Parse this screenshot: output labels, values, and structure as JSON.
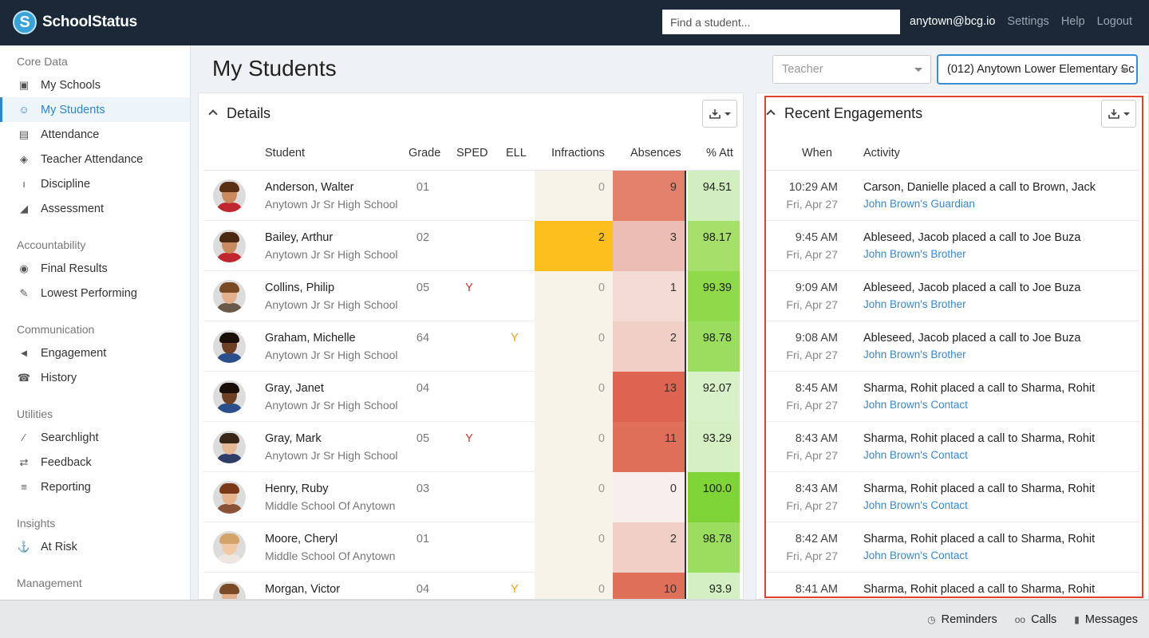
{
  "app": {
    "name": "SchoolStatus",
    "logo_letter": "S"
  },
  "topbar": {
    "search_placeholder": "Find a student...",
    "user": "anytown@bcg.io",
    "settings": "Settings",
    "help": "Help",
    "logout": "Logout"
  },
  "sidebar": {
    "sections": [
      {
        "title": "Core Data",
        "items": [
          {
            "label": "My Schools",
            "icon": "school-icon"
          },
          {
            "label": "My Students",
            "icon": "users-icon",
            "active": true
          },
          {
            "label": "Attendance",
            "icon": "calendar-icon"
          },
          {
            "label": "Teacher Attendance",
            "icon": "ticket-icon"
          },
          {
            "label": "Discipline",
            "icon": "thermometer-icon"
          },
          {
            "label": "Assessment",
            "icon": "area-chart-icon"
          }
        ]
      },
      {
        "title": "Accountability",
        "items": [
          {
            "label": "Final Results",
            "icon": "eye-icon"
          },
          {
            "label": "Lowest Performing",
            "icon": "pencil-icon"
          }
        ]
      },
      {
        "title": "Communication",
        "items": [
          {
            "label": "Engagement",
            "icon": "megaphone-icon"
          },
          {
            "label": "History",
            "icon": "phone-icon"
          }
        ]
      },
      {
        "title": "Utilities",
        "items": [
          {
            "label": "Searchlight",
            "icon": "flashlight-icon"
          },
          {
            "label": "Feedback",
            "icon": "retweet-icon"
          },
          {
            "label": "Reporting",
            "icon": "list-icon"
          }
        ]
      },
      {
        "title": "Insights",
        "items": [
          {
            "label": "At Risk",
            "icon": "at-risk-icon"
          }
        ]
      },
      {
        "title": "Management",
        "items": []
      }
    ]
  },
  "main": {
    "title": "My Students",
    "teacher_select": {
      "placeholder": "Teacher"
    },
    "school_select": {
      "value": "(012) Anytown Lower Elementary Sc"
    }
  },
  "details": {
    "title": "Details",
    "columns": {
      "student": "Student",
      "grade": "Grade",
      "sped": "SPED",
      "ell": "ELL",
      "infractions": "Infractions",
      "absences": "Absences",
      "att": "% Att"
    },
    "rows": [
      {
        "name": "Anderson, Walter",
        "school": "Anytown Jr Sr High School",
        "grade": "01",
        "sped": "",
        "ell": "",
        "infractions": "0",
        "absences": "9",
        "att": "94.51",
        "inf_bg": "#f8f3e8",
        "abs_bg": "#e3806c",
        "att_bg": "#d2eec0",
        "skin": "#c98a5e",
        "hair": "#5a3015",
        "shirt": "#c0262e"
      },
      {
        "name": "Bailey, Arthur",
        "school": "Anytown Jr Sr High School",
        "grade": "02",
        "sped": "",
        "ell": "",
        "infractions": "2",
        "absences": "3",
        "att": "98.17",
        "inf_bg": "#fdbf1d",
        "abs_bg": "#ecbdb2",
        "att_bg": "#a6e06b",
        "skin": "#c98a5e",
        "hair": "#4a2812",
        "shirt": "#c0262e"
      },
      {
        "name": "Collins, Philip",
        "school": "Anytown Jr Sr High School",
        "grade": "05",
        "sped": "Y",
        "ell": "",
        "infractions": "0",
        "absences": "1",
        "att": "99.39",
        "inf_bg": "#f8f3e8",
        "abs_bg": "#f3dad3",
        "att_bg": "#8fd94b",
        "skin": "#e3b08a",
        "hair": "#7a4a25",
        "shirt": "#6b5a4a"
      },
      {
        "name": "Graham, Michelle",
        "school": "Anytown Jr Sr High School",
        "grade": "64",
        "sped": "",
        "ell": "Y",
        "infractions": "0",
        "absences": "2",
        "att": "98.78",
        "inf_bg": "#f8f3e8",
        "abs_bg": "#efcfc6",
        "att_bg": "#9bdd5c",
        "skin": "#6e4126",
        "hair": "#1a0f08",
        "shirt": "#2b4f8a"
      },
      {
        "name": "Gray, Janet",
        "school": "Anytown Jr Sr High School",
        "grade": "04",
        "sped": "",
        "ell": "",
        "infractions": "0",
        "absences": "13",
        "att": "92.07",
        "inf_bg": "#f8f3e8",
        "abs_bg": "#dd6450",
        "att_bg": "#d9f1c9",
        "skin": "#6e4126",
        "hair": "#1a0f08",
        "shirt": "#2b4f8a"
      },
      {
        "name": "Gray, Mark",
        "school": "Anytown Jr Sr High School",
        "grade": "05",
        "sped": "Y",
        "ell": "",
        "infractions": "0",
        "absences": "11",
        "att": "93.29",
        "inf_bg": "#f8f3e8",
        "abs_bg": "#e06f5a",
        "att_bg": "#d6f0c4",
        "skin": "#e6b896",
        "hair": "#3a2616",
        "shirt": "#2e3e66"
      },
      {
        "name": "Henry, Ruby",
        "school": "Middle School Of Anytown",
        "grade": "03",
        "sped": "",
        "ell": "",
        "infractions": "0",
        "absences": "0",
        "att": "100.0",
        "inf_bg": "#f8f3e8",
        "abs_bg": "#f8eeeb",
        "att_bg": "#7fd438",
        "skin": "#e8b48e",
        "hair": "#7a3a1a",
        "shirt": "#8a5236"
      },
      {
        "name": "Moore, Cheryl",
        "school": "Middle School Of Anytown",
        "grade": "01",
        "sped": "",
        "ell": "",
        "infractions": "0",
        "absences": "2",
        "att": "98.78",
        "inf_bg": "#f8f3e8",
        "abs_bg": "#efcfc6",
        "att_bg": "#9bdd5c",
        "skin": "#f0c8a6",
        "hair": "#d4a36a",
        "shirt": "#efe7df"
      },
      {
        "name": "Morgan, Victor",
        "school": "",
        "grade": "04",
        "sped": "",
        "ell": "Y",
        "infractions": "0",
        "absences": "10",
        "att": "93.9",
        "inf_bg": "#f8f3e8",
        "abs_bg": "#e06f5a",
        "att_bg": "#d4efc2",
        "skin": "#e3b08a",
        "hair": "#7a4a25",
        "shirt": "#c0262e"
      }
    ]
  },
  "engagements": {
    "title": "Recent Engagements",
    "columns": {
      "when": "When",
      "activity": "Activity"
    },
    "rows": [
      {
        "time": "10:29 AM",
        "date": "Fri, Apr 27",
        "activity": "Carson, Danielle placed a call to Brown, Jack",
        "link": "John Brown's Guardian"
      },
      {
        "time": "9:45 AM",
        "date": "Fri, Apr 27",
        "activity": "Ableseed, Jacob placed a call to Joe Buza",
        "link": "John Brown's Brother"
      },
      {
        "time": "9:09 AM",
        "date": "Fri, Apr 27",
        "activity": "Ableseed, Jacob placed a call to Joe Buza",
        "link": "John Brown's Brother"
      },
      {
        "time": "9:08 AM",
        "date": "Fri, Apr 27",
        "activity": "Ableseed, Jacob placed a call to Joe Buza",
        "link": "John Brown's Brother"
      },
      {
        "time": "8:45 AM",
        "date": "Fri, Apr 27",
        "activity": "Sharma, Rohit placed a call to Sharma, Rohit",
        "link": "John Brown's Contact"
      },
      {
        "time": "8:43 AM",
        "date": "Fri, Apr 27",
        "activity": "Sharma, Rohit placed a call to Sharma, Rohit",
        "link": "John Brown's Contact"
      },
      {
        "time": "8:43 AM",
        "date": "Fri, Apr 27",
        "activity": "Sharma, Rohit placed a call to Sharma, Rohit",
        "link": "John Brown's Contact"
      },
      {
        "time": "8:42 AM",
        "date": "Fri, Apr 27",
        "activity": "Sharma, Rohit placed a call to Sharma, Rohit",
        "link": "John Brown's Contact"
      },
      {
        "time": "8:41 AM",
        "date": "",
        "activity": "Sharma, Rohit placed a call to Sharma, Rohit",
        "link": ""
      }
    ]
  },
  "footer": {
    "reminders": "Reminders",
    "calls": "Calls",
    "messages": "Messages"
  },
  "colors": {
    "accent": "#2f86c9",
    "topbar": "#1b2838",
    "highlight_frame": "#e0432a"
  }
}
